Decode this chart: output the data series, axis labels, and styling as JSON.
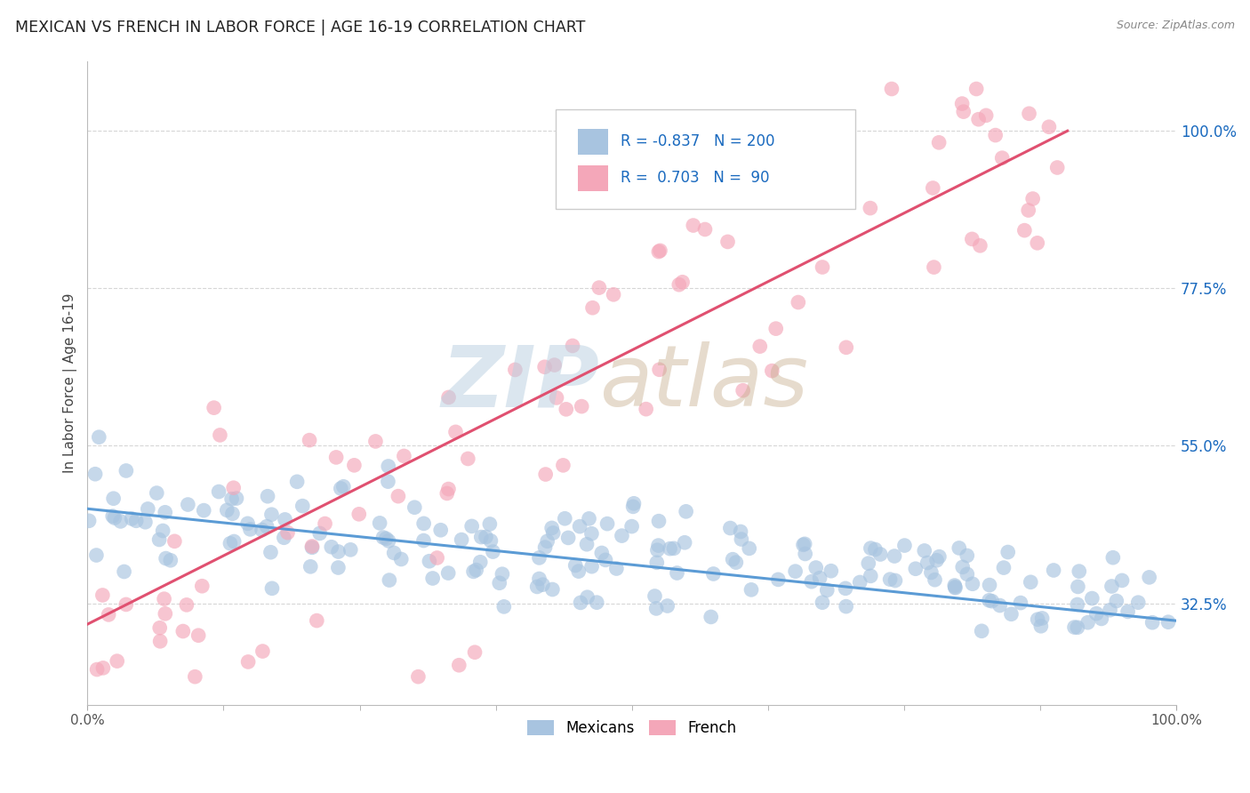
{
  "title": "MEXICAN VS FRENCH IN LABOR FORCE | AGE 16-19 CORRELATION CHART",
  "source": "Source: ZipAtlas.com",
  "ylabel": "In Labor Force | Age 16-19",
  "xlim": [
    0.0,
    1.0
  ],
  "ylim": [
    0.18,
    1.1
  ],
  "xtick_positions": [
    0.0,
    1.0
  ],
  "xtick_labels": [
    "0.0%",
    "100.0%"
  ],
  "yticks": [
    0.325,
    0.55,
    0.775,
    1.0
  ],
  "ytick_labels": [
    "32.5%",
    "55.0%",
    "77.5%",
    "100.0%"
  ],
  "mexican_color": "#a8c4e0",
  "french_color": "#f4a7b9",
  "trend_mexican_color": "#5b9bd5",
  "trend_french_color": "#e05070",
  "mexican_R": -0.837,
  "mexican_N": 200,
  "french_R": 0.703,
  "french_N": 90,
  "background_color": "#ffffff",
  "grid_color": "#cccccc",
  "legend_R_color": "#1a6abf",
  "title_color": "#222222",
  "marker_size": 12,
  "mexican_alpha": 0.65,
  "french_alpha": 0.65,
  "seed": 7,
  "mexican_intercept": 0.455,
  "mexican_slope": -0.125,
  "mexican_noise": 0.038,
  "french_intercept": 0.295,
  "french_slope": 0.78,
  "french_noise": 0.115
}
